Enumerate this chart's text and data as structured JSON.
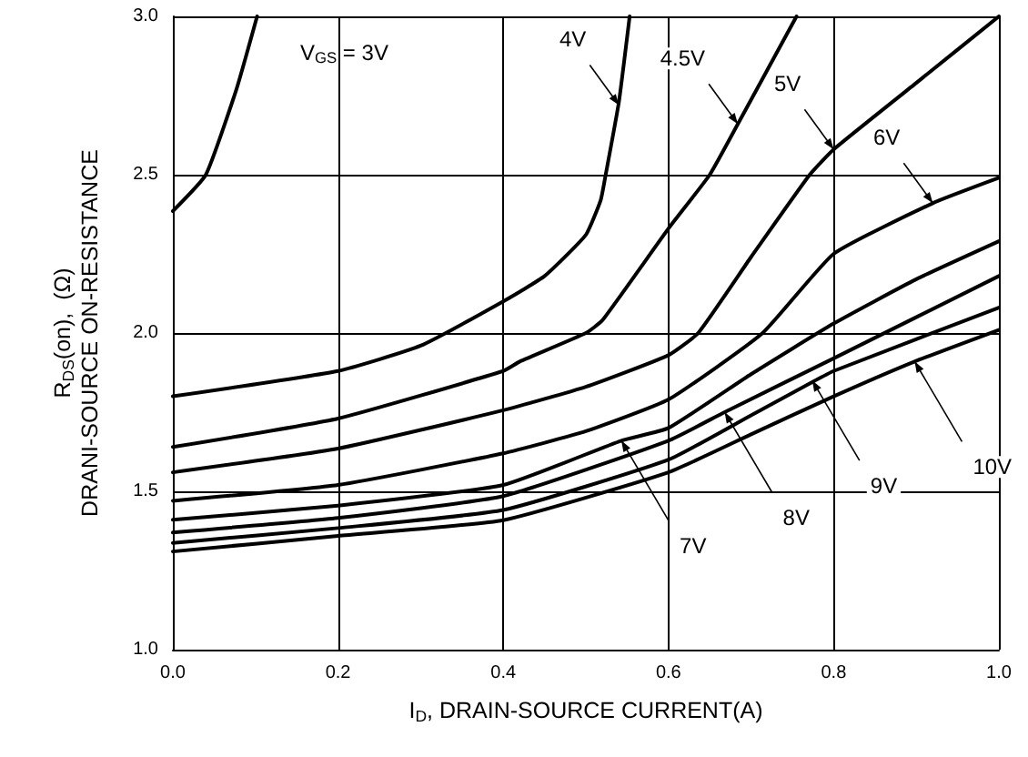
{
  "chart_data": {
    "type": "line",
    "xlabel": "I$_{D}$, DRAIN-SOURCE CURRENT(A)",
    "ylabel": "R$_{DS}$(on),  (Ω)\nDRANI-SOURCE ON-RESISTANCE",
    "xlim": [
      0,
      1
    ],
    "ylim": [
      1,
      3
    ],
    "xticks": [
      {
        "value": 0,
        "label": "0.0"
      },
      {
        "value": 0.2,
        "label": "0.2"
      },
      {
        "value": 0.4,
        "label": "0.4"
      },
      {
        "value": 0.6,
        "label": "0.6"
      },
      {
        "value": 0.8,
        "label": "0.8"
      },
      {
        "value": 1,
        "label": "1.0"
      }
    ],
    "yticks": [
      {
        "value": 1,
        "label": "1.0"
      },
      {
        "value": 1.5,
        "label": "1.5"
      },
      {
        "value": 2,
        "label": "2.0"
      },
      {
        "value": 2.5,
        "label": "2.5"
      },
      {
        "value": 3,
        "label": "3.0"
      }
    ],
    "grid": true,
    "marker": "none",
    "line_style": "solid",
    "series": [
      {
        "color": "#000000",
        "x": [
          0,
          0.04,
          0.077,
          0.102
        ],
        "values": [
          2.385,
          2.5,
          2.77,
          3.0
        ]
      },
      {
        "color": "#000000",
        "x": [
          0,
          0.2,
          0.3,
          0.4,
          0.45,
          0.5,
          0.518,
          0.524,
          0.54,
          0.553
        ],
        "values": [
          1.8,
          1.88,
          1.96,
          2.1,
          2.18,
          2.31,
          2.42,
          2.5,
          2.73,
          3.0
        ]
      },
      {
        "color": "#000000",
        "x": [
          0,
          0.2,
          0.4,
          0.42,
          0.5,
          0.52,
          0.6,
          0.65,
          0.684,
          0.755
        ],
        "values": [
          1.64,
          1.73,
          1.88,
          1.91,
          2.0,
          2.04,
          2.33,
          2.5,
          2.66,
          3.0
        ]
      },
      {
        "color": "#000000",
        "x": [
          0,
          0.2,
          0.4,
          0.5,
          0.6,
          0.636,
          0.7,
          0.771,
          0.8,
          0.9,
          1.0
        ],
        "values": [
          1.56,
          1.635,
          1.756,
          1.83,
          1.93,
          2.0,
          2.24,
          2.5,
          2.58,
          2.79,
          3.0
        ]
      },
      {
        "color": "#000000",
        "x": [
          0,
          0.2,
          0.4,
          0.5,
          0.6,
          0.714,
          0.8,
          0.92,
          1.0
        ],
        "values": [
          1.47,
          1.52,
          1.62,
          1.69,
          1.79,
          2.0,
          2.25,
          2.41,
          2.49
        ]
      },
      {
        "color": "#000000",
        "x": [
          0,
          0.2,
          0.4,
          0.543,
          0.6,
          0.7,
          0.8,
          0.9,
          1.0
        ],
        "values": [
          1.41,
          1.455,
          1.52,
          1.66,
          1.7,
          1.87,
          2.03,
          2.17,
          2.29
        ]
      },
      {
        "color": "#000000",
        "x": [
          0,
          0.2,
          0.4,
          0.6,
          0.668,
          0.8,
          1.0
        ],
        "values": [
          1.37,
          1.416,
          1.485,
          1.66,
          1.75,
          1.92,
          2.18
        ]
      },
      {
        "color": "#000000",
        "x": [
          0,
          0.2,
          0.4,
          0.6,
          0.7,
          0.774,
          0.8,
          1.0
        ],
        "values": [
          1.337,
          1.384,
          1.441,
          1.6,
          1.74,
          1.845,
          1.88,
          2.08
        ]
      },
      {
        "color": "#000000",
        "x": [
          0,
          0.2,
          0.4,
          0.6,
          0.7,
          0.8,
          0.898,
          1.0
        ],
        "values": [
          1.31,
          1.359,
          1.409,
          1.56,
          1.68,
          1.8,
          1.91,
          2.01
        ]
      }
    ],
    "annotations": [
      "V$_{GS}$ = 3V",
      {
        "text": "4V",
        "x": 0.54,
        "y": 2.72
      },
      {
        "text": "4.5V",
        "x": 0.684,
        "y": 2.66
      },
      {
        "text": "5V",
        "x": 0.8,
        "y": 2.58
      },
      {
        "text": "6V",
        "x": 0.92,
        "y": 2.41
      },
      {
        "text": "7V",
        "x": 0.543,
        "y": 1.66
      },
      {
        "text": "8V",
        "x": 0.668,
        "y": 1.75
      },
      {
        "text": "9V",
        "x": 0.774,
        "y": 1.85
      },
      {
        "text": "10V",
        "x": 0.898,
        "y": 1.91
      }
    ]
  }
}
